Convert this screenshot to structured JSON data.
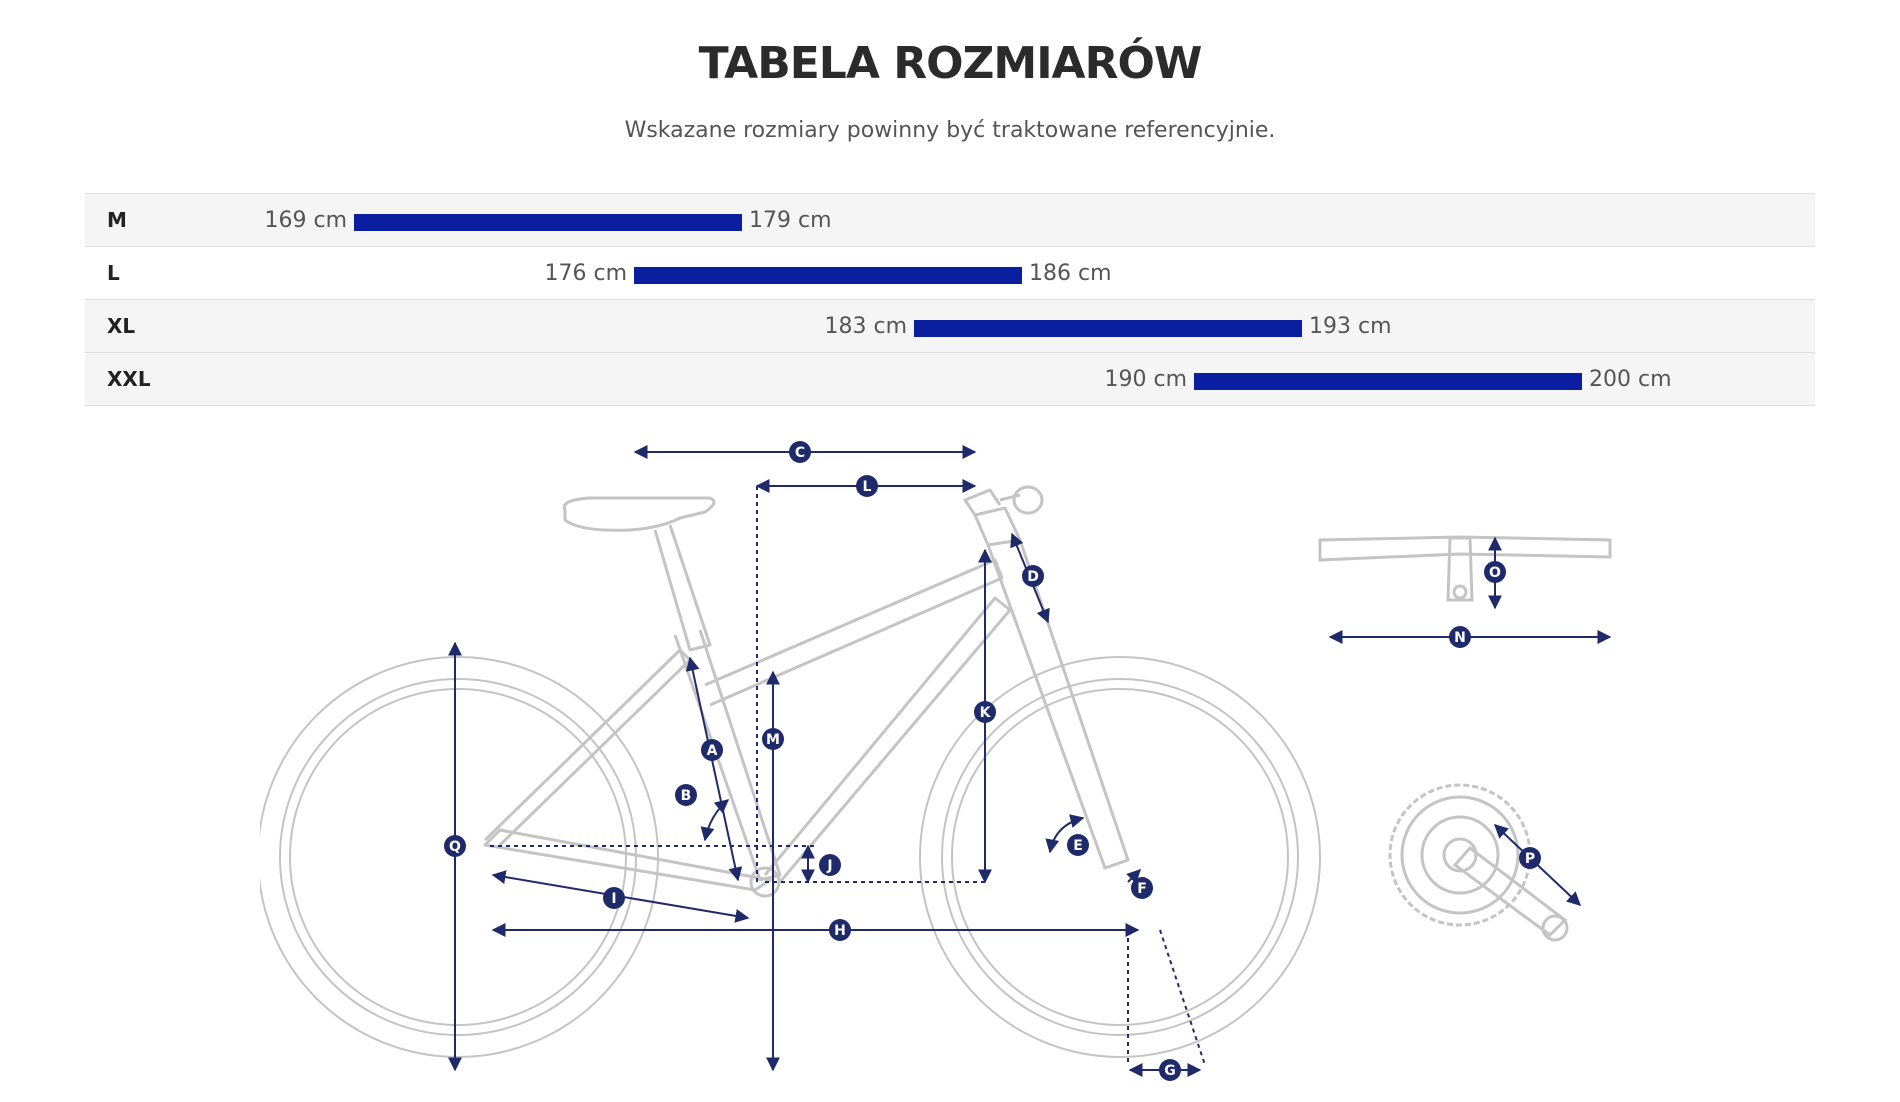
{
  "header": {
    "title": "TABELA ROZMIARÓW",
    "subtitle": "Wskazane rozmiary powinny być traktowane referencyjnie."
  },
  "sizes": [
    {
      "label": "M",
      "min": "169 cm",
      "max": "179 cm"
    },
    {
      "label": "L",
      "min": "176 cm",
      "max": "186 cm"
    },
    {
      "label": "XL",
      "min": "183 cm",
      "max": "193 cm"
    },
    {
      "label": "XXL",
      "min": "190 cm",
      "max": "200 cm"
    }
  ],
  "colors": {
    "bar": "#0a1fa0",
    "measure": "#1f2a6b",
    "frame": "#c4c4c4"
  },
  "diagram": {
    "markers": [
      "A",
      "B",
      "C",
      "D",
      "E",
      "F",
      "G",
      "H",
      "I",
      "J",
      "K",
      "L",
      "M",
      "N",
      "O",
      "P",
      "Q"
    ]
  }
}
